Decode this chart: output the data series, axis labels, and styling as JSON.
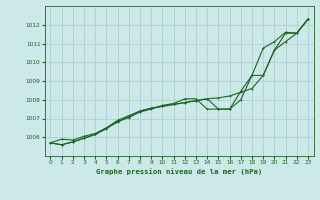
{
  "title": "Graphe pression niveau de la mer (hPa)",
  "bg_color": "#cce8e8",
  "grid_color": "#aacccc",
  "line_color": "#1a6620",
  "marker_color": "#1a6620",
  "xlim": [
    -0.5,
    23.5
  ],
  "ylim": [
    1005.0,
    1013.0
  ],
  "yticks": [
    1006,
    1007,
    1008,
    1009,
    1010,
    1011,
    1012
  ],
  "xticks": [
    0,
    1,
    2,
    3,
    4,
    5,
    6,
    7,
    8,
    9,
    10,
    11,
    12,
    13,
    14,
    15,
    16,
    17,
    18,
    19,
    20,
    21,
    22,
    23
  ],
  "series1": [
    1005.7,
    1005.9,
    1005.85,
    1006.05,
    1006.2,
    1006.5,
    1006.8,
    1007.1,
    1007.4,
    1007.55,
    1007.65,
    1007.75,
    1007.85,
    1007.95,
    1008.05,
    1008.1,
    1008.2,
    1008.4,
    1008.6,
    1009.3,
    1010.65,
    1011.1,
    1011.55,
    1012.3
  ],
  "series2": [
    1005.7,
    1005.6,
    1005.75,
    1005.95,
    1006.15,
    1006.45,
    1006.85,
    1007.05,
    1007.35,
    1007.5,
    1007.7,
    1007.8,
    1008.05,
    1008.05,
    1007.5,
    1007.5,
    1007.5,
    1008.0,
    1009.3,
    1009.3,
    1010.65,
    1011.55,
    1011.55,
    1012.3
  ],
  "series3": [
    1005.7,
    1005.6,
    1005.75,
    1005.95,
    1006.15,
    1006.5,
    1006.9,
    1007.15,
    1007.4,
    1007.55,
    1007.65,
    1007.75,
    1007.85,
    1007.95,
    1008.05,
    1007.5,
    1007.5,
    1008.45,
    1009.3,
    1010.75,
    1011.1,
    1011.6,
    1011.55,
    1012.3
  ]
}
